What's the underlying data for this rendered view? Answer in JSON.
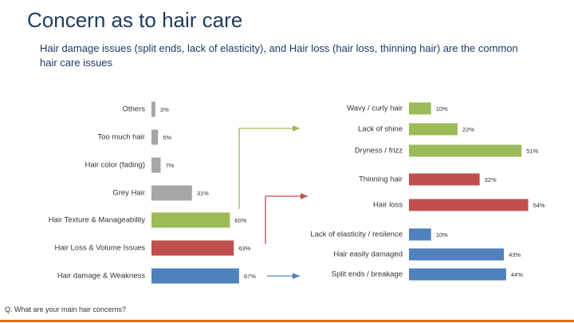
{
  "title": "Concern as to hair care",
  "subtitle": "Hair damage issues (split ends, lack of elasticity), and Hair loss (hair loss, thinning hair) are the common hair care issues",
  "footnote": "Q. What are your main hair concerns?",
  "chart_data": [
    {
      "type": "bar",
      "orientation": "horizontal",
      "categories": [
        "Others",
        "Too much hair",
        "Hair color (fading)",
        "Grey Hair",
        "Hair Texture & Manageability",
        "Hair Loss & Volume Issues",
        "Hair damage & Weakness"
      ],
      "values": [
        3,
        5,
        7,
        31,
        60,
        63,
        67
      ],
      "value_labels": [
        "3%",
        "5%",
        "7%",
        "31%",
        "60%",
        "63%",
        "67%"
      ],
      "colors": [
        "#a6a6a6",
        "#a6a6a6",
        "#a6a6a6",
        "#a6a6a6",
        "#9bbb59",
        "#c0504d",
        "#4f81bd"
      ],
      "xlim": [
        0,
        100
      ]
    },
    {
      "type": "bar",
      "orientation": "horizontal",
      "categories": [
        "Wavy / curly hair",
        "Lack of shine",
        "Dryness / frizz",
        "Thinning hair",
        "Hair loss",
        "Lack of elasticity / resilence",
        "Hair easily damaged",
        "Split ends / breakage"
      ],
      "values": [
        10,
        22,
        51,
        32,
        54,
        10,
        43,
        44
      ],
      "value_labels": [
        "10%",
        "22%",
        "51%",
        "32%",
        "54%",
        "10%",
        "43%",
        "44%"
      ],
      "colors": [
        "#9bbb59",
        "#9bbb59",
        "#9bbb59",
        "#c0504d",
        "#c0504d",
        "#4f81bd",
        "#4f81bd",
        "#4f81bd"
      ],
      "xlim": [
        0,
        100
      ]
    }
  ]
}
